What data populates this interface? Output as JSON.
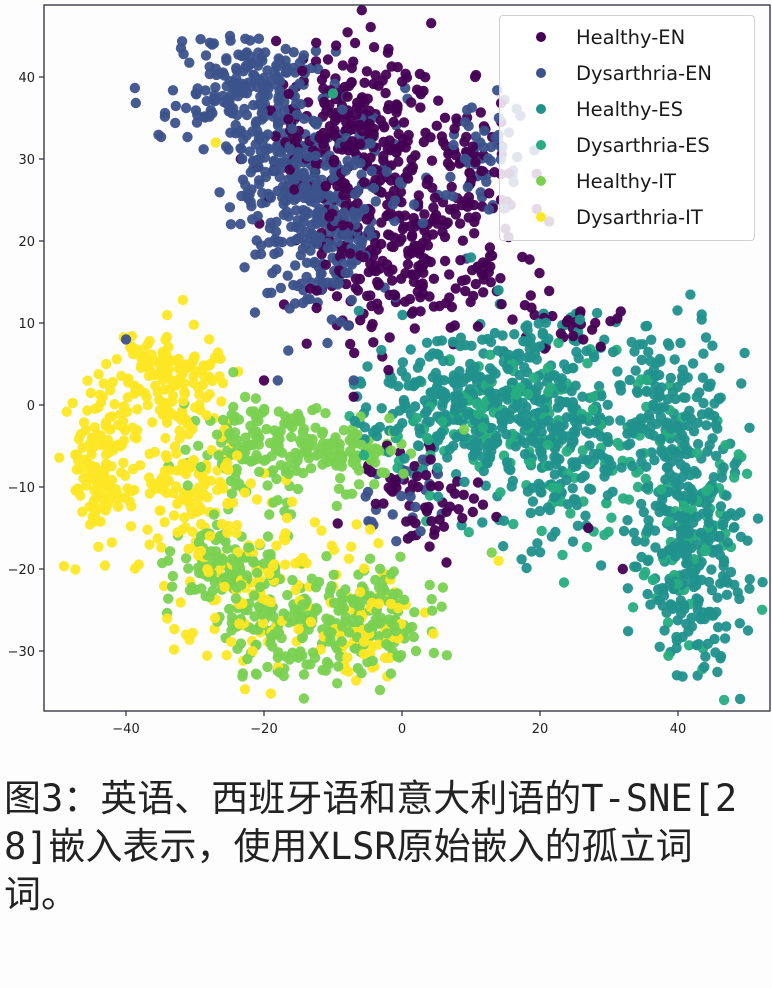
{
  "chart_data": {
    "type": "scatter",
    "title": "",
    "xlabel": "",
    "ylabel": "",
    "xlim": [
      -52,
      54
    ],
    "ylim": [
      -37,
      49
    ],
    "grid": false,
    "legend_position": "upper right",
    "x_ticks": [
      -40,
      -20,
      0,
      20,
      40
    ],
    "x_tick_labels": [
      "−40",
      "−20",
      "0",
      "20",
      "40"
    ],
    "y_ticks": [
      40,
      30,
      20,
      10,
      0,
      -10,
      -20,
      -30
    ],
    "y_tick_labels": [
      "40",
      "30",
      "20",
      "10",
      "0",
      "−10",
      "−20",
      "−30"
    ],
    "marker": "circle",
    "clusters_are_approximate": true,
    "clusters_note": "Cluster centres and spreads estimated by eye from the screenshot. Points are generated from these descriptors; they are not values read from the image.",
    "series": [
      {
        "name": "Healthy-EN",
        "color": "#440154",
        "clusters": [
          {
            "cx": -6,
            "cy": 34,
            "sx": 6,
            "sy": 6,
            "n": 260
          },
          {
            "cx": -2,
            "cy": 18,
            "sx": 6,
            "sy": 5,
            "n": 200
          },
          {
            "cx": 10,
            "cy": 30,
            "sx": 3,
            "sy": 5,
            "n": 60
          },
          {
            "cx": 12,
            "cy": 16,
            "sx": 3,
            "sy": 4,
            "n": 40
          },
          {
            "cx": 3,
            "cy": -11,
            "sx": 5,
            "sy": 3,
            "n": 60
          },
          {
            "cx": 22,
            "cy": 10,
            "sx": 5,
            "sy": 2,
            "n": 30
          }
        ]
      },
      {
        "name": "Dysarthria-EN",
        "color": "#3b528b",
        "clusters": [
          {
            "cx": -22,
            "cy": 38,
            "sx": 6,
            "sy": 4,
            "n": 220
          },
          {
            "cx": -18,
            "cy": 28,
            "sx": 4,
            "sy": 4,
            "n": 100
          },
          {
            "cx": -12,
            "cy": 20,
            "sx": 4,
            "sy": 5,
            "n": 140
          },
          {
            "cx": -8,
            "cy": 26,
            "sx": 5,
            "sy": 5,
            "n": 120
          },
          {
            "cx": 12,
            "cy": 30,
            "sx": 3,
            "sy": 4,
            "n": 50
          },
          {
            "cx": 0,
            "cy": -12,
            "sx": 4,
            "sy": 3,
            "n": 25
          }
        ]
      },
      {
        "name": "Healthy-ES",
        "color": "#21918c",
        "clusters": [
          {
            "cx": 8,
            "cy": 0,
            "sx": 7,
            "sy": 4,
            "n": 260
          },
          {
            "cx": 22,
            "cy": -4,
            "sx": 6,
            "sy": 6,
            "n": 240
          },
          {
            "cx": 38,
            "cy": 0,
            "sx": 4,
            "sy": 5,
            "n": 140
          },
          {
            "cx": 42,
            "cy": -18,
            "sx": 4,
            "sy": 8,
            "n": 280
          },
          {
            "cx": 20,
            "cy": 8,
            "sx": 5,
            "sy": 2,
            "n": 40
          }
        ]
      },
      {
        "name": "Dysarthria-ES",
        "color": "#27ad81",
        "clusters": [
          {
            "cx": 12,
            "cy": -2,
            "sx": 7,
            "sy": 4,
            "n": 90
          },
          {
            "cx": 28,
            "cy": -6,
            "sx": 7,
            "sy": 6,
            "n": 80
          },
          {
            "cx": 42,
            "cy": -16,
            "sx": 4,
            "sy": 8,
            "n": 80
          }
        ]
      },
      {
        "name": "Healthy-IT",
        "color": "#7ad151",
        "clusters": [
          {
            "cx": -20,
            "cy": -5,
            "sx": 5,
            "sy": 3,
            "n": 150
          },
          {
            "cx": -8,
            "cy": -6,
            "sx": 4,
            "sy": 2,
            "n": 80
          },
          {
            "cx": -25,
            "cy": -20,
            "sx": 4,
            "sy": 3,
            "n": 120
          },
          {
            "cx": -16,
            "cy": -27,
            "sx": 5,
            "sy": 3,
            "n": 140
          },
          {
            "cx": -4,
            "cy": -26,
            "sx": 4,
            "sy": 3,
            "n": 120
          }
        ]
      },
      {
        "name": "Dysarthria-IT",
        "color": "#fde725",
        "clusters": [
          {
            "cx": -34,
            "cy": 3,
            "sx": 4,
            "sy": 3,
            "n": 160
          },
          {
            "cx": -44,
            "cy": -7,
            "sx": 2.5,
            "sy": 5,
            "n": 130
          },
          {
            "cx": -30,
            "cy": -10,
            "sx": 4,
            "sy": 4,
            "n": 120
          },
          {
            "cx": -20,
            "cy": -22,
            "sx": 7,
            "sy": 6,
            "n": 130
          },
          {
            "cx": -5,
            "cy": -27,
            "sx": 4,
            "sy": 3,
            "n": 60
          }
        ]
      }
    ],
    "outliers": [
      {
        "series": "Dysarthria-IT",
        "x": -27,
        "y": 32
      },
      {
        "series": "Dysarthria-ES",
        "x": -10,
        "y": 38
      },
      {
        "series": "Healthy-ES",
        "x": 10,
        "y": 18
      },
      {
        "series": "Healthy-ES",
        "x": 14,
        "y": 14
      },
      {
        "series": "Dysarthria-EN",
        "x": -40,
        "y": 8
      },
      {
        "series": "Healthy-EN",
        "x": -20,
        "y": 3
      },
      {
        "series": "Dysarthria-EN",
        "x": -18,
        "y": 3
      },
      {
        "series": "Dysarthria-EN",
        "x": -7,
        "y": 3
      },
      {
        "series": "Healthy-EN",
        "x": -7,
        "y": 1
      },
      {
        "series": "Healthy-IT",
        "x": 9,
        "y": -3
      },
      {
        "series": "Healthy-IT",
        "x": 13,
        "y": -18
      },
      {
        "series": "Dysarthria-IT",
        "x": 14,
        "y": -19
      },
      {
        "series": "Healthy-EN",
        "x": 27,
        "y": -15
      },
      {
        "series": "Healthy-EN",
        "x": 32,
        "y": -20
      }
    ]
  },
  "legend": {
    "items": [
      {
        "label": "Healthy-EN",
        "color": "#440154"
      },
      {
        "label": "Dysarthria-EN",
        "color": "#3b528b"
      },
      {
        "label": "Healthy-ES",
        "color": "#21918c"
      },
      {
        "label": "Dysarthria-ES",
        "color": "#27ad81"
      },
      {
        "label": "Healthy-IT",
        "color": "#7ad151"
      },
      {
        "label": "Dysarthria-IT",
        "color": "#fde725"
      }
    ]
  },
  "caption": {
    "text": "图3：英语、西班牙语和意大利语的T-SNE[28]嵌入表示，使用XLSR原始嵌入的孤立词词。"
  }
}
